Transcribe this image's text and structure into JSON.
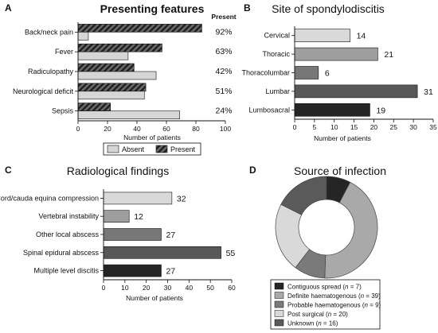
{
  "colors": {
    "absent": "#d6d6d6",
    "present_hatch_bg": "#6a6a6a",
    "present_hatch_line": "#1e1e1e",
    "thoracic": "#9e9e9e",
    "thoracolumbar": "#777777",
    "lumbar": "#585858",
    "lumbosacral": "#252525",
    "cervical": "#d9d9d9"
  },
  "chart_data": [
    {
      "panel": "A",
      "type": "bar",
      "orientation": "horizontal",
      "title": "Presenting features",
      "categories": [
        "Back/neck pain",
        "Fever",
        "Radiculopathy",
        "Neurological deficit",
        "Sepsis"
      ],
      "series": [
        {
          "name": "Present",
          "values": [
            84,
            57,
            38,
            46,
            22
          ],
          "style": "hatched"
        },
        {
          "name": "Absent",
          "values": [
            7,
            34,
            53,
            45,
            69
          ],
          "style": "light"
        }
      ],
      "column_header": "Present",
      "present_percent": [
        "92%",
        "63%",
        "42%",
        "51%",
        "24%"
      ],
      "xlabel": "Number of patients",
      "xlim": [
        0,
        100
      ],
      "xticks": [
        "0",
        "20",
        "40",
        "60",
        "80",
        "100"
      ],
      "legend": [
        "Absent",
        "Present"
      ],
      "legend_position": "bottom"
    },
    {
      "panel": "B",
      "type": "bar",
      "orientation": "horizontal",
      "title": "Site of spondylodiscitis",
      "categories": [
        "Cervical",
        "Thoracic",
        "Thoracolumbar",
        "Lumbar",
        "Lumbosacral"
      ],
      "values": [
        14,
        21,
        6,
        31,
        19
      ],
      "value_labels": [
        "14",
        "21",
        "6",
        "31",
        "19"
      ],
      "xlabel": "Number of patients",
      "xlim": [
        0,
        35
      ],
      "xticks": [
        "0",
        "5",
        "10",
        "15",
        "20",
        "25",
        "30",
        "35"
      ]
    },
    {
      "panel": "C",
      "type": "bar",
      "orientation": "horizontal",
      "title": "Radiological findings",
      "categories": [
        "Cord/cauda equina compression",
        "Vertebral instability",
        "Other local abscess",
        "Spinal epidural abscess",
        "Multiple level discitis"
      ],
      "values": [
        32,
        12,
        27,
        55,
        27
      ],
      "value_labels": [
        "32",
        "12",
        "27",
        "55",
        "27"
      ],
      "xlabel": "Number of patients",
      "xlim": [
        0,
        60
      ],
      "xticks": [
        "0",
        "10",
        "20",
        "30",
        "40",
        "50",
        "60"
      ]
    },
    {
      "panel": "D",
      "type": "pie",
      "donut": true,
      "title": "Source of infection",
      "slices": [
        {
          "label": "Contiguous spread",
          "n": "7",
          "value": 7,
          "color": "#252525"
        },
        {
          "label": "Definite haematogenous",
          "n": "39",
          "value": 39,
          "color": "#a9a9a9"
        },
        {
          "label": "Probable haematogenous",
          "n": "9",
          "value": 9,
          "color": "#7a7a7a"
        },
        {
          "label": "Post surgical",
          "n": "20",
          "value": 20,
          "color": "#d9d9d9"
        },
        {
          "label": "Unknown",
          "n": "16",
          "value": 16,
          "color": "#5a5a5a"
        }
      ],
      "legend_n_prefix": "n",
      "legend_position": "bottom"
    }
  ]
}
